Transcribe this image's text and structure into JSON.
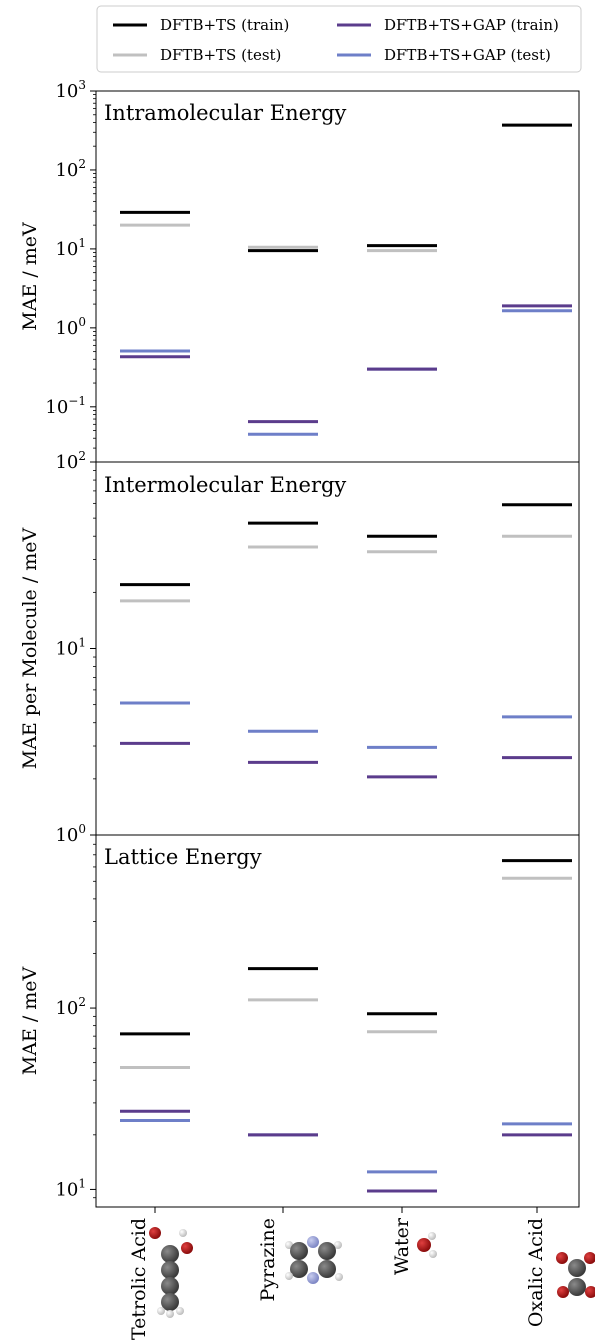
{
  "legend": {
    "placement": "top",
    "entries": [
      {
        "label": "DFTB+TS (train)",
        "color": "#000000"
      },
      {
        "label": "DFTB+TS (test)",
        "color": "#c0c0c0"
      },
      {
        "label": "DFTB+TS+GAP (train)",
        "color": "#5b3c8c"
      },
      {
        "label": "DFTB+TS+GAP (test)",
        "color": "#6e7fc8"
      }
    ]
  },
  "categories": [
    "Tetrolic Acid",
    "Pyrazine",
    "Water",
    "Oxalic Acid"
  ],
  "molecule_icons": [
    "tetrolic-acid-molecule-icon",
    "pyrazine-molecule-icon",
    "water-molecule-icon",
    "oxalic-acid-molecule-icon"
  ],
  "chart_data": [
    {
      "type": "scatter",
      "title": "Intramolecular Energy",
      "ylabel": "MAE / meV",
      "yscale": "log",
      "ylim": [
        0.02,
        1000
      ],
      "yticks": [
        {
          "value": 0.1,
          "base": "10",
          "exp": "−1"
        },
        {
          "value": 1,
          "base": "10",
          "exp": "0",
          "text": "10⁰"
        },
        {
          "value": 10,
          "base": "10",
          "exp": "1"
        },
        {
          "value": 100,
          "base": "10",
          "exp": "2"
        },
        {
          "value": 1000,
          "base": "10",
          "exp": "3"
        }
      ],
      "categories": [
        "Tetrolic Acid",
        "Pyrazine",
        "Water",
        "Oxalic Acid"
      ],
      "series": [
        {
          "name": "DFTB+TS (train)",
          "values": [
            29,
            9.5,
            11,
            370
          ]
        },
        {
          "name": "DFTB+TS (test)",
          "values": [
            20,
            10.5,
            9.5,
            370
          ]
        },
        {
          "name": "DFTB+TS+GAP (train)",
          "values": [
            0.43,
            0.065,
            0.3,
            1.9
          ]
        },
        {
          "name": "DFTB+TS+GAP (test)",
          "values": [
            0.51,
            0.045,
            0.3,
            1.65
          ]
        }
      ]
    },
    {
      "type": "scatter",
      "title": "Intermolecular Energy",
      "ylabel": "MAE per Molecule / meV",
      "yscale": "log",
      "ylim": [
        1,
        100
      ],
      "yticks": [
        {
          "value": 1,
          "base": "10",
          "exp": "0"
        },
        {
          "value": 10,
          "base": "10",
          "exp": "1"
        },
        {
          "value": 100,
          "base": "10",
          "exp": "2"
        }
      ],
      "categories": [
        "Tetrolic Acid",
        "Pyrazine",
        "Water",
        "Oxalic Acid"
      ],
      "series": [
        {
          "name": "DFTB+TS (train)",
          "values": [
            22,
            47,
            40,
            59
          ]
        },
        {
          "name": "DFTB+TS (test)",
          "values": [
            18,
            35,
            33,
            40
          ]
        },
        {
          "name": "DFTB+TS+GAP (train)",
          "values": [
            3.1,
            2.45,
            2.05,
            2.6
          ]
        },
        {
          "name": "DFTB+TS+GAP (test)",
          "values": [
            5.1,
            3.6,
            2.95,
            4.3
          ]
        }
      ]
    },
    {
      "type": "scatter",
      "title": "Lattice Energy",
      "ylabel": "MAE / meV",
      "yscale": "log",
      "ylim": [
        8,
        900
      ],
      "yticks": [
        {
          "value": 10,
          "base": "10",
          "exp": "1"
        },
        {
          "value": 100,
          "base": "10",
          "exp": "2"
        }
      ],
      "categories": [
        "Tetrolic Acid",
        "Pyrazine",
        "Water",
        "Oxalic Acid"
      ],
      "series": [
        {
          "name": "DFTB+TS (train)",
          "values": [
            72,
            165,
            93,
            650
          ]
        },
        {
          "name": "DFTB+TS (test)",
          "values": [
            47,
            111,
            74,
            520
          ]
        },
        {
          "name": "DFTB+TS+GAP (train)",
          "values": [
            27,
            20,
            9.8,
            20
          ]
        },
        {
          "name": "DFTB+TS+GAP (test)",
          "values": [
            24,
            20,
            12.5,
            23
          ]
        }
      ]
    }
  ]
}
